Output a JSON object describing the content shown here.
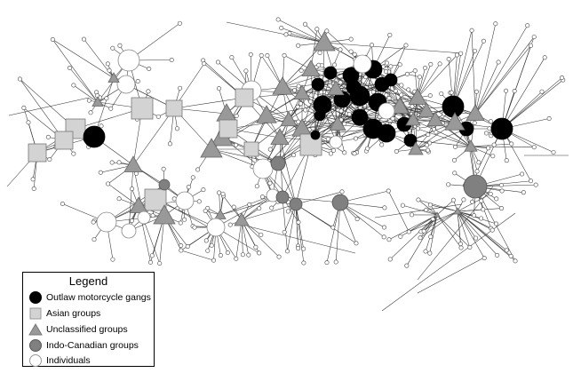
{
  "legend": {
    "title": "Legend",
    "items": [
      {
        "shape": "circle",
        "fill": "#000000",
        "label": "Outlaw motorcycle gangs"
      },
      {
        "shape": "square",
        "fill": "#d3d3d3",
        "label": "Asian groups"
      },
      {
        "shape": "triangle",
        "fill": "#999999",
        "label": "Unclassified groups"
      },
      {
        "shape": "circle",
        "fill": "#808080",
        "label": "Indo-Canadian groups"
      },
      {
        "shape": "circle",
        "fill": "#ffffff",
        "label": "Individuals"
      }
    ]
  },
  "colors": {
    "edge": "#333333",
    "outlaw": "#000000",
    "asian": "#d3d3d3",
    "unclassified": "#999999",
    "indo": "#808080",
    "individual": "#ffffff"
  }
}
